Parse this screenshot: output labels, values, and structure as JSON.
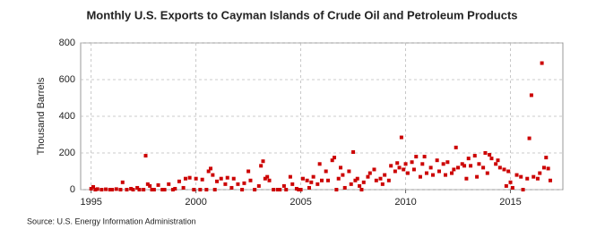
{
  "chart_data": {
    "type": "scatter",
    "title": "Monthly U.S. Exports to Cayman Islands of Crude Oil and Petroleum Products",
    "y_label": "Thousand Barrels",
    "source": "Source: U.S. Energy Information Administration",
    "color": "#cc0000",
    "grid": true,
    "xlim": [
      1994.5,
      2017.5
    ],
    "xticks": [
      1995,
      2000,
      2005,
      2010,
      2015
    ],
    "ylim": [
      0,
      800
    ],
    "yticks": [
      0,
      200,
      400,
      600,
      800
    ],
    "x": [
      1995.0,
      1995.1,
      1995.2,
      1995.3,
      1995.5,
      1995.7,
      1995.9,
      1996.0,
      1996.2,
      1996.4,
      1996.5,
      1996.7,
      1996.9,
      1997.0,
      1997.2,
      1997.3,
      1997.5,
      1997.6,
      1997.7,
      1997.8,
      1997.9,
      1998.0,
      1998.2,
      1998.4,
      1998.5,
      1998.7,
      1998.9,
      1999.0,
      1999.2,
      1999.4,
      1999.5,
      1999.7,
      1999.9,
      2000.0,
      2000.2,
      2000.3,
      2000.5,
      2000.6,
      2000.7,
      2000.8,
      2000.9,
      2001.0,
      2001.2,
      2001.4,
      2001.5,
      2001.7,
      2001.8,
      2002.0,
      2002.2,
      2002.3,
      2002.5,
      2002.6,
      2002.8,
      2003.0,
      2003.1,
      2003.2,
      2003.3,
      2003.4,
      2003.5,
      2003.7,
      2003.9,
      2004.0,
      2004.2,
      2004.3,
      2004.5,
      2004.6,
      2004.8,
      2004.9,
      2005.0,
      2005.1,
      2005.3,
      2005.4,
      2005.5,
      2005.6,
      2005.8,
      2005.9,
      2006.0,
      2006.2,
      2006.3,
      2006.5,
      2006.6,
      2006.7,
      2006.8,
      2006.9,
      2007.0,
      2007.1,
      2007.3,
      2007.4,
      2007.5,
      2007.6,
      2007.7,
      2007.8,
      2007.9,
      2008.0,
      2008.2,
      2008.3,
      2008.5,
      2008.6,
      2008.8,
      2008.9,
      2009.0,
      2009.2,
      2009.3,
      2009.5,
      2009.6,
      2009.7,
      2009.8,
      2009.9,
      2010.0,
      2010.1,
      2010.3,
      2010.4,
      2010.5,
      2010.7,
      2010.8,
      2010.9,
      2011.0,
      2011.2,
      2011.3,
      2011.5,
      2011.6,
      2011.8,
      2011.9,
      2012.0,
      2012.2,
      2012.3,
      2012.4,
      2012.5,
      2012.7,
      2012.8,
      2012.9,
      2013.0,
      2013.1,
      2013.3,
      2013.4,
      2013.5,
      2013.7,
      2013.8,
      2013.9,
      2014.0,
      2014.1,
      2014.3,
      2014.4,
      2014.5,
      2014.7,
      2014.8,
      2014.9,
      2015.0,
      2015.1,
      2015.3,
      2015.5,
      2015.6,
      2015.8,
      2015.9,
      2016.0,
      2016.1,
      2016.3,
      2016.4,
      2016.5,
      2016.6,
      2016.7,
      2016.8,
      2016.9
    ],
    "values": [
      5,
      15,
      0,
      3,
      0,
      2,
      0,
      0,
      3,
      0,
      40,
      0,
      5,
      0,
      10,
      0,
      0,
      185,
      30,
      20,
      0,
      0,
      25,
      0,
      0,
      30,
      0,
      5,
      45,
      10,
      60,
      65,
      0,
      60,
      0,
      55,
      0,
      100,
      115,
      80,
      0,
      45,
      60,
      30,
      65,
      10,
      60,
      30,
      0,
      35,
      100,
      50,
      0,
      20,
      130,
      155,
      60,
      70,
      50,
      0,
      0,
      0,
      20,
      0,
      70,
      30,
      5,
      0,
      0,
      60,
      50,
      10,
      40,
      70,
      30,
      140,
      50,
      100,
      50,
      160,
      175,
      0,
      60,
      120,
      80,
      10,
      100,
      30,
      205,
      50,
      60,
      20,
      0,
      40,
      70,
      90,
      110,
      50,
      60,
      30,
      80,
      50,
      130,
      100,
      145,
      120,
      285,
      110,
      140,
      90,
      150,
      110,
      180,
      70,
      140,
      180,
      90,
      120,
      80,
      160,
      100,
      140,
      80,
      150,
      90,
      110,
      230,
      120,
      140,
      130,
      60,
      170,
      130,
      185,
      70,
      140,
      120,
      200,
      90,
      190,
      170,
      140,
      160,
      120,
      110,
      20,
      100,
      40,
      10,
      80,
      70,
      0,
      60,
      280,
      515,
      70,
      60,
      90,
      690,
      120,
      175,
      115,
      50
    ]
  }
}
